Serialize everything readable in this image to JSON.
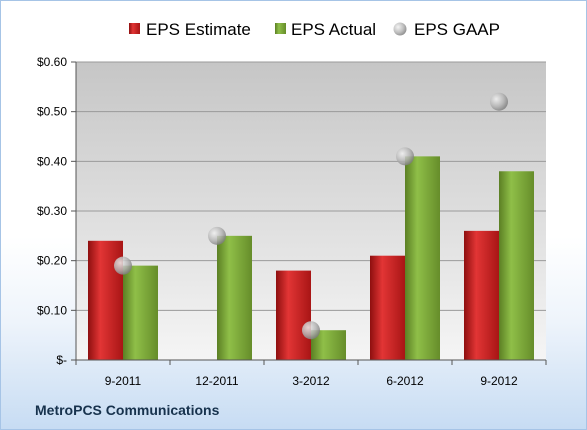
{
  "company": "MetroPCS Communications",
  "colors": {
    "estimate": "#d42020",
    "actual": "#7fac3a",
    "gaap": "#b8b8b8",
    "plot_top": "#c8c8c8",
    "plot_bottom": "#f4f4f4"
  },
  "chart_data": {
    "type": "bar",
    "categories": [
      "9-2011",
      "12-2011",
      "3-2012",
      "6-2012",
      "9-2012"
    ],
    "series": [
      {
        "name": "EPS Estimate",
        "kind": "bar",
        "values": [
          0.24,
          null,
          0.18,
          0.21,
          0.26
        ]
      },
      {
        "name": "EPS Actual",
        "kind": "bar",
        "values": [
          0.19,
          0.25,
          0.06,
          0.41,
          0.38
        ]
      },
      {
        "name": "EPS GAAP",
        "kind": "marker",
        "values": [
          0.19,
          0.25,
          0.06,
          0.41,
          0.52
        ]
      }
    ],
    "ylim": [
      0,
      0.6
    ],
    "yticks": [
      0,
      0.1,
      0.2,
      0.3,
      0.4,
      0.5,
      0.6
    ],
    "ytick_labels": [
      "$-",
      "$0.10",
      "$0.20",
      "$0.30",
      "$0.40",
      "$0.50",
      "$0.60"
    ],
    "title": "",
    "xlabel": "",
    "ylabel": "",
    "legend_position": "top",
    "grid": true
  }
}
